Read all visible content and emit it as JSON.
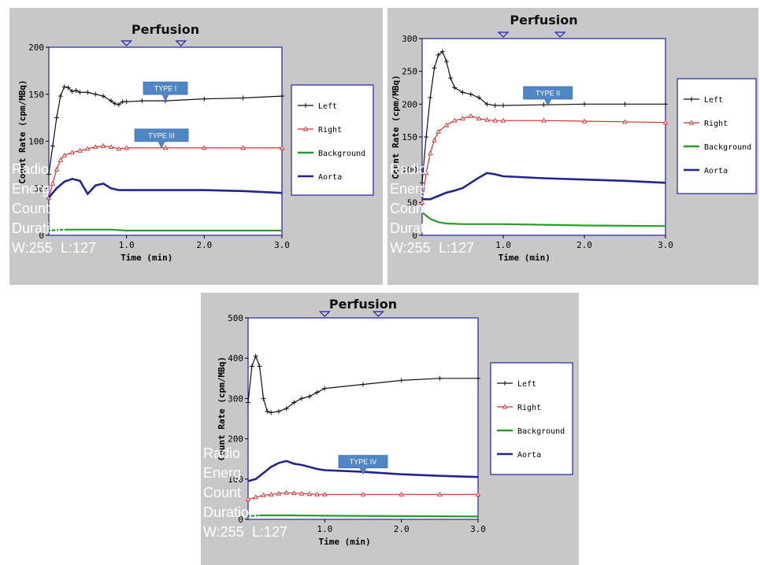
{
  "colors": {
    "left": "#111111",
    "right": "#d03030",
    "background": "#2a9a2a",
    "aorta": "#24248c",
    "panel_bg": "#c8c8c8",
    "plot_bg": "#ffffff",
    "frame": "#2222aa",
    "callout": "#4f86c6"
  },
  "overlay_text": {
    "radio": "Radio",
    "energy": "Energ",
    "counts": "Count",
    "duration": "Duration:",
    "window": "W:255",
    "level": "L:127"
  },
  "chart_data": [
    {
      "type": "line",
      "panel": "top-left",
      "title": "Perfusion",
      "xlabel": "Time (min)",
      "ylabel": "Count Rate (cpm/MBq)",
      "xlim": [
        0,
        3.0
      ],
      "ylim": [
        0,
        200
      ],
      "yticks": [
        0,
        50,
        100,
        150,
        200
      ],
      "xticks": [
        1.0,
        2.0,
        3.0
      ],
      "xtick_labels": [
        "1.0",
        "2.0",
        "3.0"
      ],
      "legend_position": "right",
      "marker_ticks_x": [
        1.0,
        1.7
      ],
      "callouts": [
        {
          "text": "TYPE I",
          "x": 1.5,
          "y": 143
        },
        {
          "text": "TYPE III",
          "x": 1.45,
          "y": 93
        }
      ],
      "series": [
        {
          "name": "Left",
          "marker": "plus",
          "x": [
            0,
            0.05,
            0.1,
            0.15,
            0.2,
            0.25,
            0.3,
            0.35,
            0.4,
            0.5,
            0.6,
            0.7,
            0.8,
            0.85,
            0.9,
            0.95,
            1.0,
            1.2,
            1.5,
            2.0,
            2.5,
            3.0
          ],
          "y": [
            65,
            95,
            125,
            148,
            158,
            157,
            153,
            154,
            152,
            152,
            150,
            148,
            143,
            140,
            139,
            142,
            142,
            143,
            143,
            145,
            146,
            148
          ]
        },
        {
          "name": "Right",
          "marker": "triangle",
          "x": [
            0,
            0.05,
            0.1,
            0.15,
            0.2,
            0.3,
            0.4,
            0.5,
            0.6,
            0.7,
            0.8,
            0.9,
            1.0,
            1.5,
            2.0,
            2.5,
            3.0
          ],
          "y": [
            40,
            55,
            70,
            80,
            85,
            88,
            90,
            92,
            94,
            95,
            94,
            92,
            93,
            93,
            93,
            93,
            93
          ]
        },
        {
          "name": "Background",
          "marker": "none",
          "x": [
            0,
            0.2,
            0.5,
            0.8,
            1.0,
            2.0,
            3.0
          ],
          "y": [
            5,
            6,
            6,
            6,
            5,
            5,
            5
          ]
        },
        {
          "name": "Aorta",
          "marker": "none",
          "x": [
            0,
            0.1,
            0.2,
            0.3,
            0.4,
            0.5,
            0.6,
            0.7,
            0.8,
            0.9,
            1.0,
            1.5,
            2.0,
            2.5,
            3.0
          ],
          "y": [
            40,
            50,
            57,
            60,
            58,
            44,
            53,
            55,
            50,
            48,
            48,
            48,
            48,
            47,
            45
          ]
        }
      ]
    },
    {
      "type": "line",
      "panel": "top-right",
      "title": "Perfusion",
      "xlabel": "Time (min)",
      "ylabel": "Count Rate (cpm/MBq)",
      "xlim": [
        0,
        3.0
      ],
      "ylim": [
        0,
        300
      ],
      "yticks": [
        0,
        50,
        100,
        150,
        200,
        250,
        300
      ],
      "xticks": [
        1.0,
        2.0,
        3.0
      ],
      "xtick_labels": [
        "1.0",
        "2.0",
        "3.0"
      ],
      "legend_position": "right",
      "marker_ticks_x": [
        1.0,
        1.7
      ],
      "callouts": [
        {
          "text": "TYPE II",
          "x": 1.55,
          "y": 198
        }
      ],
      "series": [
        {
          "name": "Left",
          "marker": "plus",
          "x": [
            0,
            0.05,
            0.1,
            0.15,
            0.2,
            0.25,
            0.3,
            0.35,
            0.4,
            0.5,
            0.6,
            0.7,
            0.8,
            0.9,
            1.0,
            1.5,
            2.0,
            2.5,
            3.0
          ],
          "y": [
            80,
            150,
            210,
            255,
            275,
            280,
            265,
            240,
            225,
            218,
            215,
            210,
            200,
            198,
            198,
            199,
            200,
            200,
            200
          ]
        },
        {
          "name": "Right",
          "marker": "triangle",
          "x": [
            0,
            0.05,
            0.1,
            0.15,
            0.2,
            0.3,
            0.4,
            0.5,
            0.6,
            0.7,
            0.8,
            0.9,
            1.0,
            1.5,
            2.0,
            2.5,
            3.0
          ],
          "y": [
            50,
            95,
            125,
            145,
            158,
            168,
            175,
            178,
            182,
            178,
            176,
            175,
            175,
            175,
            174,
            173,
            172
          ]
        },
        {
          "name": "Background",
          "marker": "none",
          "x": [
            0,
            0.05,
            0.1,
            0.2,
            0.3,
            0.5,
            1.0,
            2.0,
            3.0
          ],
          "y": [
            35,
            30,
            25,
            20,
            18,
            17,
            17,
            15,
            14
          ]
        },
        {
          "name": "Aorta",
          "marker": "none",
          "x": [
            0,
            0.1,
            0.2,
            0.3,
            0.4,
            0.5,
            0.6,
            0.7,
            0.8,
            0.9,
            1.0,
            1.5,
            2.0,
            2.5,
            3.0
          ],
          "y": [
            55,
            55,
            60,
            65,
            68,
            72,
            80,
            88,
            95,
            93,
            90,
            87,
            85,
            83,
            80
          ]
        }
      ]
    },
    {
      "type": "line",
      "panel": "bottom-center",
      "title": "Perfusion",
      "xlabel": "Time (min)",
      "ylabel": "Count Rate (cpm/MBq)",
      "xlim": [
        0,
        3.0
      ],
      "ylim": [
        0,
        500
      ],
      "yticks": [
        0,
        100,
        200,
        300,
        400,
        500
      ],
      "xticks": [
        1.0,
        2.0,
        3.0
      ],
      "xtick_labels": [
        "1.0",
        "2.0",
        "3.0"
      ],
      "legend_position": "right",
      "marker_ticks_x": [
        1.0,
        1.7
      ],
      "callouts": [
        {
          "text": "TYPE IV",
          "x": 1.5,
          "y": 112
        }
      ],
      "series": [
        {
          "name": "Left",
          "marker": "plus",
          "x": [
            0,
            0.05,
            0.1,
            0.15,
            0.2,
            0.25,
            0.3,
            0.4,
            0.5,
            0.6,
            0.7,
            0.8,
            0.9,
            1.0,
            1.5,
            2.0,
            2.5,
            3.0
          ],
          "y": [
            290,
            380,
            405,
            380,
            300,
            268,
            265,
            268,
            275,
            290,
            300,
            305,
            315,
            325,
            335,
            345,
            350,
            350
          ]
        },
        {
          "name": "Right",
          "marker": "triangle",
          "x": [
            0,
            0.1,
            0.2,
            0.3,
            0.4,
            0.5,
            0.6,
            0.7,
            0.8,
            0.9,
            1.0,
            1.5,
            2.0,
            2.5,
            3.0
          ],
          "y": [
            50,
            55,
            60,
            62,
            64,
            66,
            65,
            64,
            63,
            62,
            62,
            62,
            62,
            62,
            62
          ]
        },
        {
          "name": "Background",
          "marker": "none",
          "x": [
            0,
            0.2,
            0.5,
            1.0,
            2.0,
            3.0
          ],
          "y": [
            8,
            10,
            10,
            9,
            8,
            7
          ]
        },
        {
          "name": "Aorta",
          "marker": "none",
          "x": [
            0,
            0.1,
            0.2,
            0.3,
            0.4,
            0.5,
            0.6,
            0.7,
            0.8,
            0.9,
            1.0,
            1.5,
            2.0,
            2.5,
            3.0
          ],
          "y": [
            95,
            100,
            115,
            130,
            140,
            145,
            138,
            135,
            130,
            125,
            122,
            118,
            112,
            108,
            105
          ]
        }
      ]
    }
  ]
}
